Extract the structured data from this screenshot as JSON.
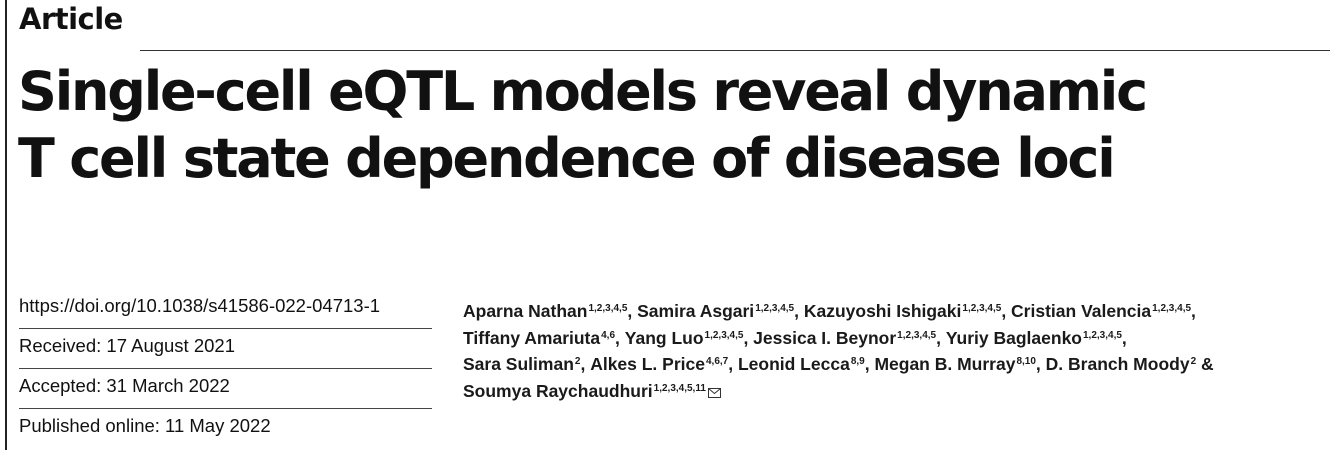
{
  "header": {
    "section_label": "Article"
  },
  "title": {
    "line1": "Single-cell eQTL models reveal dynamic",
    "line2": "T cell state dependence of disease loci"
  },
  "meta": {
    "doi": "https://doi.org/10.1038/s41586-022-04713-1",
    "received": "Received: 17 August 2021",
    "accepted": "Accepted: 31 March 2022",
    "published": "Published online: 11 May 2022"
  },
  "authors": [
    {
      "name": "Aparna Nathan",
      "aff": "1,2,3,4,5",
      "sep": ", "
    },
    {
      "name": "Samira Asgari",
      "aff": "1,2,3,4,5",
      "sep": ", "
    },
    {
      "name": "Kazuyoshi Ishigaki",
      "aff": "1,2,3,4,5",
      "sep": ", "
    },
    {
      "name": "Cristian Valencia",
      "aff": "1,2,3,4,5",
      "sep": ","
    },
    {
      "name": "Tiffany Amariuta",
      "aff": "4,6",
      "sep": ", "
    },
    {
      "name": "Yang Luo",
      "aff": "1,2,3,4,5",
      "sep": ", "
    },
    {
      "name": "Jessica I. Beynor",
      "aff": "1,2,3,4,5",
      "sep": ", "
    },
    {
      "name": "Yuriy Baglaenko",
      "aff": "1,2,3,4,5",
      "sep": ","
    },
    {
      "name": "Sara Suliman",
      "aff": "2",
      "sep": ", "
    },
    {
      "name": "Alkes L. Price",
      "aff": "4,6,7",
      "sep": ", "
    },
    {
      "name": "Leonid Lecca",
      "aff": "8,9",
      "sep": ", "
    },
    {
      "name": "Megan B. Murray",
      "aff": "8,10",
      "sep": ", "
    },
    {
      "name": "D. Branch Moody",
      "aff": "2",
      "sep": " &"
    },
    {
      "name": "Soumya Raychaudhuri",
      "aff": "1,2,3,4,5,11",
      "sep": ""
    }
  ],
  "corresponding_icon": "envelope-icon"
}
